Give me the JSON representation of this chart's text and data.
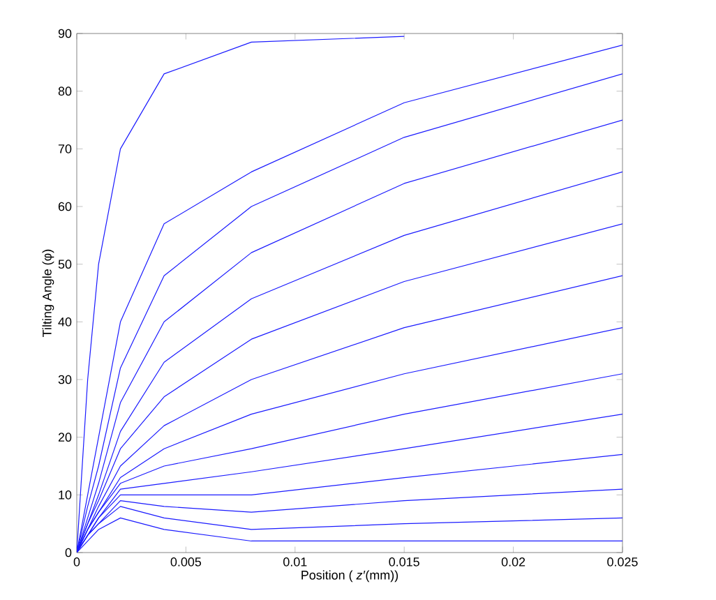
{
  "chart_data": {
    "type": "line",
    "xlabel": "Position ( *z′*(mm))",
    "ylabel": "Tilting Angle (φ)",
    "x": [
      0,
      0.0005,
      0.001,
      0.002,
      0.004,
      0.008,
      0.015,
      0.025
    ],
    "series": [
      {
        "color": "#1a1aff",
        "values": [
          0,
          30,
          50,
          70,
          83,
          88.5,
          89.5,
          null
        ]
      },
      {
        "color": "#1a1aff",
        "values": [
          0,
          10,
          20,
          40,
          57,
          66,
          78,
          88
        ]
      },
      {
        "color": "#1a1aff",
        "values": [
          0,
          8,
          15,
          32,
          48,
          60,
          72,
          83
        ]
      },
      {
        "color": "#1a1aff",
        "values": [
          0,
          6,
          12,
          26,
          40,
          52,
          64,
          75
        ]
      },
      {
        "color": "#1a1aff",
        "values": [
          0,
          5,
          10,
          21,
          33,
          44,
          55,
          66
        ]
      },
      {
        "color": "#1a1aff",
        "values": [
          0,
          5,
          9,
          18,
          27,
          37,
          47,
          57
        ]
      },
      {
        "color": "#1a1aff",
        "values": [
          0,
          4,
          8,
          15,
          22,
          30,
          39,
          48
        ]
      },
      {
        "color": "#1a1aff",
        "values": [
          0,
          4,
          7,
          13,
          18,
          24,
          31,
          39
        ]
      },
      {
        "color": "#1a1aff",
        "values": [
          0,
          4,
          7,
          12,
          15,
          18,
          24,
          31
        ]
      },
      {
        "color": "#1a1aff",
        "values": [
          0,
          3,
          6,
          11,
          12,
          14,
          18,
          24
        ]
      },
      {
        "color": "#1a1aff",
        "values": [
          0,
          3,
          6,
          10,
          10,
          10,
          13,
          17
        ]
      },
      {
        "color": "#1a1aff",
        "values": [
          0,
          3,
          5,
          9,
          8,
          7,
          9,
          11
        ]
      },
      {
        "color": "#1a1aff",
        "values": [
          0,
          3,
          5,
          8,
          6,
          4,
          5,
          6
        ]
      },
      {
        "color": "#1a1aff",
        "values": [
          0,
          2,
          4,
          6,
          4,
          2,
          2,
          2
        ]
      }
    ],
    "xlim": [
      0,
      0.025
    ],
    "ylim": [
      0,
      90
    ],
    "xticks": [
      0,
      0.005,
      0.01,
      0.015,
      0.02,
      0.025
    ],
    "yticks": [
      0,
      10,
      20,
      30,
      40,
      50,
      60,
      70,
      80,
      90
    ]
  }
}
